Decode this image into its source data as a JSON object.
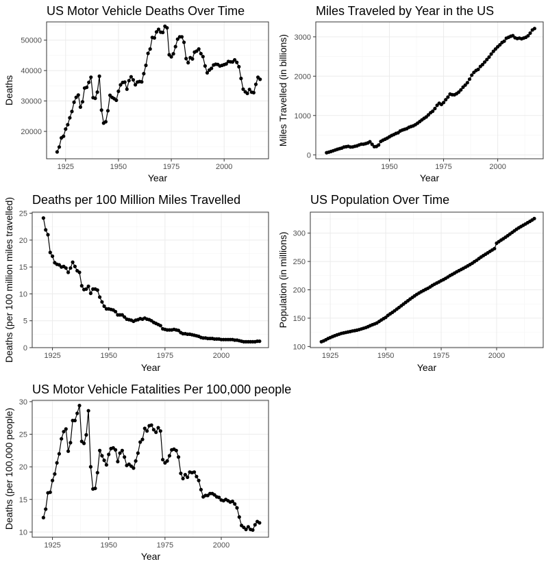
{
  "chart_data": [
    {
      "type": "line",
      "title": "US Motor Vehicle Deaths Over Time",
      "xlabel": "Year",
      "ylabel": "Deaths",
      "xlim": [
        1916,
        2021
      ],
      "ylim": [
        11000,
        56000
      ],
      "xticks": [
        1925,
        1950,
        1975,
        2000
      ],
      "yticks": [
        20000,
        30000,
        40000,
        50000
      ],
      "connected": true,
      "grid": true,
      "x": [
        1921,
        1922,
        1923,
        1924,
        1925,
        1926,
        1927,
        1928,
        1929,
        1930,
        1931,
        1932,
        1933,
        1934,
        1935,
        1936,
        1937,
        1938,
        1939,
        1940,
        1941,
        1942,
        1943,
        1944,
        1945,
        1946,
        1947,
        1948,
        1949,
        1950,
        1951,
        1952,
        1953,
        1954,
        1955,
        1956,
        1957,
        1958,
        1959,
        1960,
        1961,
        1962,
        1963,
        1964,
        1965,
        1966,
        1967,
        1968,
        1969,
        1970,
        1971,
        1972,
        1973,
        1974,
        1975,
        1976,
        1977,
        1978,
        1979,
        1980,
        1981,
        1982,
        1983,
        1984,
        1985,
        1986,
        1987,
        1988,
        1989,
        1990,
        1991,
        1992,
        1993,
        1994,
        1995,
        1996,
        1997,
        1998,
        1999,
        2000,
        2001,
        2002,
        2003,
        2004,
        2005,
        2006,
        2007,
        2008,
        2009,
        2010,
        2011,
        2012,
        2013,
        2014,
        2015,
        2016,
        2017
      ],
      "y": [
        13253,
        14859,
        17870,
        18400,
        20771,
        22200,
        24470,
        26557,
        29592,
        31204,
        31963,
        27979,
        29746,
        34240,
        34494,
        36126,
        37819,
        31083,
        30895,
        32914,
        38142,
        27007,
        22727,
        23165,
        26785,
        31874,
        31193,
        30775,
        30246,
        33186,
        35309,
        36088,
        36190,
        33890,
        36688,
        37965,
        36932,
        35331,
        36223,
        36399,
        36285,
        38980,
        41723,
        45645,
        47089,
        50894,
        50724,
        52725,
        53543,
        52627,
        52542,
        54589,
        54052,
        45196,
        44525,
        45523,
        47878,
        50331,
        51093,
        51091,
        49301,
        43945,
        42589,
        44257,
        43825,
        46087,
        46390,
        47087,
        45582,
        44599,
        41508,
        39250,
        40150,
        40716,
        41817,
        42065,
        42013,
        41501,
        41717,
        41945,
        42196,
        43005,
        42884,
        42836,
        43510,
        42708,
        41259,
        37423,
        33883,
        32999,
        32479,
        33782,
        32893,
        32744,
        35485,
        37806,
        37133
      ]
    },
    {
      "type": "line",
      "title": "Miles Traveled by Year in the US",
      "xlabel": "Year",
      "ylabel": "Miles Travelled (in billions)",
      "xlim": [
        1916,
        2021
      ],
      "ylim": [
        -100,
        3380
      ],
      "xticks": [
        1950,
        1975,
        2000
      ],
      "yticks": [
        0,
        1000,
        2000,
        3000
      ],
      "connected": true,
      "grid": true,
      "x": [
        1921,
        1922,
        1923,
        1924,
        1925,
        1926,
        1927,
        1928,
        1929,
        1930,
        1931,
        1932,
        1933,
        1934,
        1935,
        1936,
        1937,
        1938,
        1939,
        1940,
        1941,
        1942,
        1943,
        1944,
        1945,
        1946,
        1947,
        1948,
        1949,
        1950,
        1951,
        1952,
        1953,
        1954,
        1955,
        1956,
        1957,
        1958,
        1959,
        1960,
        1961,
        1962,
        1963,
        1964,
        1965,
        1966,
        1967,
        1968,
        1969,
        1970,
        1971,
        1972,
        1973,
        1974,
        1975,
        1976,
        1977,
        1978,
        1979,
        1980,
        1981,
        1982,
        1983,
        1984,
        1985,
        1986,
        1987,
        1988,
        1989,
        1990,
        1991,
        1992,
        1993,
        1994,
        1995,
        1996,
        1997,
        1998,
        1999,
        2000,
        2001,
        2002,
        2003,
        2004,
        2005,
        2006,
        2007,
        2008,
        2009,
        2010,
        2011,
        2012,
        2013,
        2014,
        2015,
        2016,
        2017
      ],
      "y": [
        55,
        68,
        85,
        104,
        122,
        141,
        158,
        172,
        198,
        206,
        216,
        200,
        201,
        216,
        229,
        252,
        270,
        271,
        285,
        302,
        334,
        268,
        208,
        213,
        250,
        341,
        371,
        398,
        424,
        458,
        491,
        514,
        544,
        562,
        606,
        631,
        648,
        665,
        700,
        719,
        737,
        767,
        805,
        847,
        888,
        928,
        964,
        1016,
        1071,
        1109,
        1178,
        1259,
        1313,
        1281,
        1330,
        1402,
        1467,
        1545,
        1529,
        1527,
        1555,
        1595,
        1653,
        1720,
        1774,
        1835,
        1924,
        2026,
        2096,
        2144,
        2172,
        2247,
        2296,
        2358,
        2423,
        2486,
        2562,
        2632,
        2691,
        2747,
        2797,
        2856,
        2890,
        2965,
        2989,
        3014,
        3031,
        2977,
        2957,
        2967,
        2950,
        2969,
        2988,
        3026,
        3095,
        3174,
        3212
      ]
    },
    {
      "type": "line",
      "title": "Deaths per 100 Million Miles Travelled",
      "xlabel": "Year",
      "ylabel": "Deaths (per 100 million miles travelled)",
      "xlim": [
        1916,
        2021
      ],
      "ylim": [
        0,
        25.2
      ],
      "xticks": [
        1925,
        1950,
        1975,
        2000
      ],
      "yticks": [
        0,
        5,
        10,
        15,
        20,
        25
      ],
      "connected": true,
      "grid": true,
      "x": [
        1921,
        1922,
        1923,
        1924,
        1925,
        1926,
        1927,
        1928,
        1929,
        1930,
        1931,
        1932,
        1933,
        1934,
        1935,
        1936,
        1937,
        1938,
        1939,
        1940,
        1941,
        1942,
        1943,
        1944,
        1945,
        1946,
        1947,
        1948,
        1949,
        1950,
        1951,
        1952,
        1953,
        1954,
        1955,
        1956,
        1957,
        1958,
        1959,
        1960,
        1961,
        1962,
        1963,
        1964,
        1965,
        1966,
        1967,
        1968,
        1969,
        1970,
        1971,
        1972,
        1973,
        1974,
        1975,
        1976,
        1977,
        1978,
        1979,
        1980,
        1981,
        1982,
        1983,
        1984,
        1985,
        1986,
        1987,
        1988,
        1989,
        1990,
        1991,
        1992,
        1993,
        1994,
        1995,
        1996,
        1997,
        1998,
        1999,
        2000,
        2001,
        2002,
        2003,
        2004,
        2005,
        2006,
        2007,
        2008,
        2009,
        2010,
        2011,
        2012,
        2013,
        2014,
        2015,
        2016,
        2017
      ],
      "y": [
        24.1,
        21.9,
        21.0,
        17.7,
        17.0,
        15.8,
        15.5,
        15.4,
        15.0,
        15.1,
        14.8,
        14.0,
        14.8,
        15.9,
        15.1,
        14.3,
        14.0,
        11.5,
        10.8,
        10.9,
        11.4,
        10.1,
        10.9,
        10.9,
        10.7,
        9.4,
        8.5,
        7.7,
        7.2,
        7.2,
        7.1,
        7.0,
        6.7,
        6.1,
        6.1,
        6.1,
        5.7,
        5.3,
        5.2,
        5.1,
        4.9,
        5.1,
        5.2,
        5.4,
        5.3,
        5.5,
        5.3,
        5.2,
        5.0,
        4.7,
        4.5,
        4.3,
        4.1,
        3.5,
        3.4,
        3.3,
        3.3,
        3.3,
        3.4,
        3.3,
        3.2,
        2.8,
        2.6,
        2.6,
        2.5,
        2.5,
        2.4,
        2.3,
        2.2,
        2.1,
        1.9,
        1.8,
        1.8,
        1.7,
        1.7,
        1.7,
        1.6,
        1.6,
        1.6,
        1.5,
        1.5,
        1.5,
        1.5,
        1.5,
        1.5,
        1.4,
        1.4,
        1.3,
        1.2,
        1.1,
        1.1,
        1.1,
        1.1,
        1.1,
        1.1,
        1.2,
        1.2
      ]
    },
    {
      "type": "line",
      "title": "US Population Over Time",
      "xlabel": "Year",
      "ylabel": "Population (in millions)",
      "xlim": [
        1916,
        2021
      ],
      "ylim": [
        98,
        337
      ],
      "xticks": [
        1925,
        1950,
        1975,
        2000
      ],
      "yticks": [
        100,
        150,
        200,
        250,
        300
      ],
      "connected": true,
      "grid": true,
      "x": [
        1921,
        1922,
        1923,
        1924,
        1925,
        1926,
        1927,
        1928,
        1929,
        1930,
        1931,
        1932,
        1933,
        1934,
        1935,
        1936,
        1937,
        1938,
        1939,
        1940,
        1941,
        1942,
        1943,
        1944,
        1945,
        1946,
        1947,
        1948,
        1949,
        1950,
        1951,
        1952,
        1953,
        1954,
        1955,
        1956,
        1957,
        1958,
        1959,
        1960,
        1961,
        1962,
        1963,
        1964,
        1965,
        1966,
        1967,
        1968,
        1969,
        1970,
        1971,
        1972,
        1973,
        1974,
        1975,
        1976,
        1977,
        1978,
        1979,
        1980,
        1981,
        1982,
        1983,
        1984,
        1985,
        1986,
        1987,
        1988,
        1989,
        1990,
        1991,
        1992,
        1993,
        1994,
        1995,
        1996,
        1997,
        1998,
        1999,
        2000,
        2001,
        2002,
        2003,
        2004,
        2005,
        2006,
        2007,
        2008,
        2009,
        2010,
        2011,
        2012,
        2013,
        2014,
        2015,
        2016,
        2017
      ],
      "y": [
        108.5,
        110.0,
        111.9,
        114.1,
        115.8,
        117.4,
        119.0,
        120.5,
        121.8,
        123.1,
        124.0,
        124.8,
        125.6,
        126.4,
        127.3,
        128.1,
        128.8,
        129.8,
        130.9,
        132.1,
        133.4,
        134.9,
        136.7,
        138.4,
        139.9,
        141.4,
        144.1,
        146.6,
        149.2,
        151.3,
        154.9,
        157.6,
        160.2,
        163.0,
        165.9,
        168.9,
        171.9,
        174.9,
        177.8,
        180.7,
        183.7,
        186.5,
        189.2,
        191.9,
        194.3,
        196.6,
        198.7,
        200.7,
        202.7,
        205.1,
        207.7,
        209.9,
        211.9,
        213.9,
        216.0,
        218.0,
        220.2,
        222.6,
        225.1,
        227.2,
        229.5,
        231.7,
        233.8,
        235.8,
        237.9,
        240.1,
        242.3,
        244.5,
        246.8,
        249.6,
        252.2,
        255.0,
        257.8,
        260.3,
        262.8,
        265.2,
        267.8,
        270.2,
        272.7,
        282.2,
        285.0,
        287.6,
        290.1,
        292.8,
        295.5,
        298.4,
        301.2,
        304.1,
        306.8,
        309.3,
        311.6,
        313.9,
        316.1,
        318.4,
        320.7,
        323.1,
        325.7
      ]
    },
    {
      "type": "line",
      "title": "US Motor Vehicle Fatalities Per 100,000 people",
      "xlabel": "Year",
      "ylabel": "Deaths (per 100,000 people)",
      "xlim": [
        1916,
        2021
      ],
      "ylim": [
        9.2,
        30.2
      ],
      "xticks": [
        1925,
        1950,
        1975,
        2000
      ],
      "yticks": [
        10,
        15,
        20,
        25,
        30
      ],
      "connected": true,
      "grid": true,
      "x": [
        1921,
        1922,
        1923,
        1924,
        1925,
        1926,
        1927,
        1928,
        1929,
        1930,
        1931,
        1932,
        1933,
        1934,
        1935,
        1936,
        1937,
        1938,
        1939,
        1940,
        1941,
        1942,
        1943,
        1944,
        1945,
        1946,
        1947,
        1948,
        1949,
        1950,
        1951,
        1952,
        1953,
        1954,
        1955,
        1956,
        1957,
        1958,
        1959,
        1960,
        1961,
        1962,
        1963,
        1964,
        1965,
        1966,
        1967,
        1968,
        1969,
        1970,
        1971,
        1972,
        1973,
        1974,
        1975,
        1976,
        1977,
        1978,
        1979,
        1980,
        1981,
        1982,
        1983,
        1984,
        1985,
        1986,
        1987,
        1988,
        1989,
        1990,
        1991,
        1992,
        1993,
        1994,
        1995,
        1996,
        1997,
        1998,
        1999,
        2000,
        2001,
        2002,
        2003,
        2004,
        2005,
        2006,
        2007,
        2008,
        2009,
        2010,
        2011,
        2012,
        2013,
        2014,
        2015,
        2016,
        2017
      ],
      "y": [
        12.2,
        13.5,
        16.0,
        16.1,
        17.9,
        18.9,
        20.6,
        22.0,
        24.3,
        25.4,
        25.8,
        22.4,
        23.7,
        27.1,
        27.1,
        28.2,
        29.4,
        23.9,
        23.6,
        24.9,
        28.6,
        20.0,
        16.6,
        16.7,
        19.1,
        22.5,
        21.7,
        21.0,
        20.3,
        21.9,
        22.8,
        22.9,
        22.6,
        20.8,
        22.1,
        22.5,
        21.5,
        20.2,
        20.4,
        20.1,
        19.8,
        20.9,
        22.1,
        23.8,
        24.2,
        25.9,
        25.5,
        26.3,
        26.4,
        25.7,
        25.3,
        26.0,
        25.5,
        21.1,
        20.6,
        20.9,
        21.7,
        22.6,
        22.7,
        22.5,
        21.5,
        19.0,
        18.2,
        18.8,
        18.4,
        19.2,
        19.1,
        19.2,
        18.5,
        17.9,
        16.5,
        15.4,
        15.6,
        15.6,
        15.9,
        15.9,
        15.7,
        15.4,
        15.3,
        14.9,
        14.8,
        15.0,
        14.8,
        14.6,
        14.7,
        14.3,
        13.7,
        12.3,
        11.0,
        10.7,
        10.4,
        10.8,
        10.4,
        10.3,
        11.1,
        11.6,
        11.4
      ]
    }
  ]
}
